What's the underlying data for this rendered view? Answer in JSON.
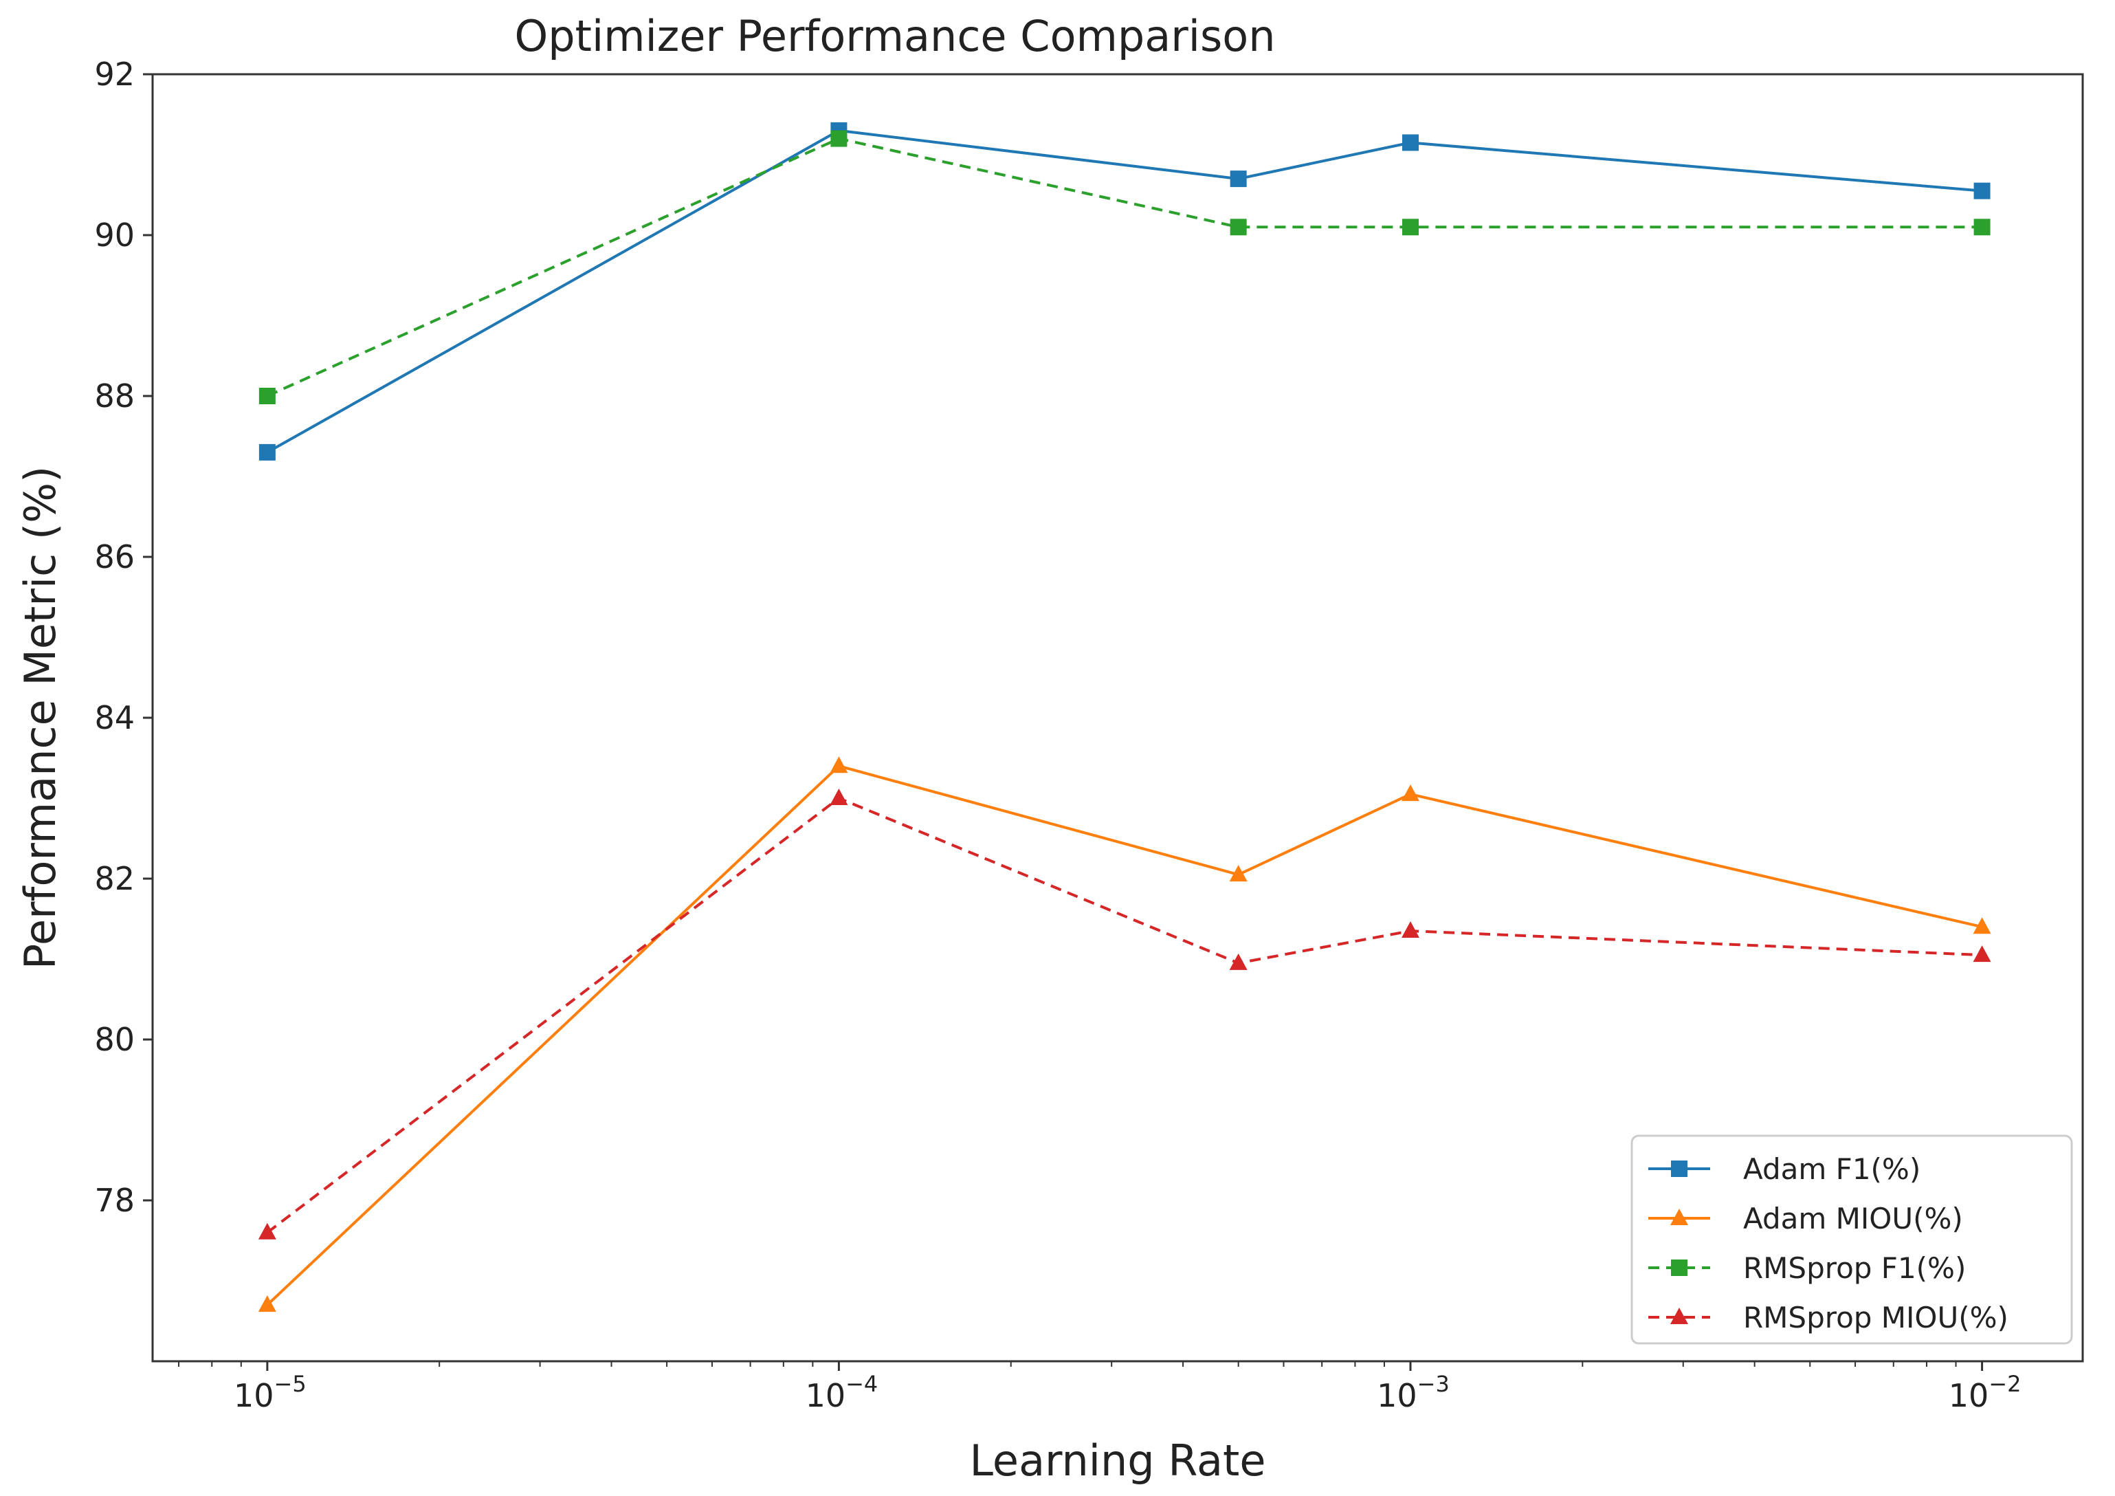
{
  "chart_data": {
    "type": "line",
    "title": "Optimizer Performance Comparison",
    "xlabel": "Learning Rate",
    "ylabel": "Performance Metric (%)",
    "xscale": "log",
    "xlim": [
      6.3e-06,
      0.015
    ],
    "ylim": [
      76.0,
      92.0
    ],
    "x_ticks": [
      {
        "value": 1e-05,
        "base": "10",
        "exp": "−5"
      },
      {
        "value": 0.0001,
        "base": "10",
        "exp": "−4"
      },
      {
        "value": 0.001,
        "base": "10",
        "exp": "−3"
      },
      {
        "value": 0.01,
        "base": "10",
        "exp": "−2"
      }
    ],
    "y_ticks": [
      "78",
      "80",
      "82",
      "84",
      "86",
      "88",
      "90",
      "92"
    ],
    "x": [
      1e-05,
      0.0001,
      0.0005,
      0.001,
      0.01
    ],
    "series": [
      {
        "name": "Adam F1(%)",
        "color": "#1f77b4",
        "dash": "solid",
        "marker": "square",
        "values": [
          87.3,
          91.3,
          90.7,
          91.15,
          90.55
        ]
      },
      {
        "name": "Adam MIOU(%)",
        "color": "#ff7f0e",
        "dash": "solid",
        "marker": "triangle",
        "values": [
          76.7,
          83.4,
          82.05,
          83.05,
          81.4
        ]
      },
      {
        "name": "RMSprop F1(%)",
        "color": "#2ca02c",
        "dash": "dashed",
        "marker": "square",
        "values": [
          88.0,
          91.2,
          90.1,
          90.1,
          90.1
        ]
      },
      {
        "name": "RMSprop MIOU(%)",
        "color": "#d62728",
        "dash": "dashed",
        "marker": "triangle",
        "values": [
          77.6,
          83.0,
          80.95,
          81.35,
          81.05
        ]
      }
    ],
    "legend_position": "lower-right",
    "grid": false
  }
}
